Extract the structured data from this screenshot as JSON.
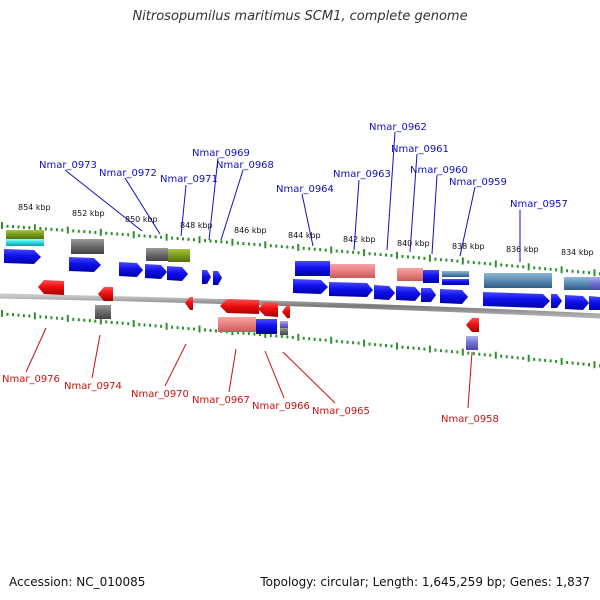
{
  "title": "Nitrosopumilus maritimus SCM1, complete genome",
  "footer": {
    "accession": "Accession: NC_010085",
    "summary": "Topology: circular; Length: 1,645,259 bp; Genes: 1,837"
  },
  "colors": {
    "backbone": "#8a8a8a",
    "tick": "#2f8f2f",
    "top_label": "#1010c0",
    "bottom_label": "#cc1010",
    "forward_cds": "#1a1aee",
    "reverse_cds": "#ee1a1a"
  },
  "scale_labels": [
    "854 kbp",
    "852 kbp",
    "850 kbp",
    "848 kbp",
    "846 kbp",
    "844 kbp",
    "842 kbp",
    "840 kbp",
    "838 kbp",
    "836 kbp",
    "834 kbp"
  ],
  "top_genes": [
    "Nmar_0962",
    "Nmar_0961",
    "Nmar_0969",
    "Nmar_0968",
    "Nmar_0973",
    "Nmar_0963",
    "Nmar_0960",
    "Nmar_0972",
    "Nmar_0971",
    "Nmar_0959",
    "Nmar_0964",
    "Nmar_0957"
  ],
  "bottom_genes": [
    "Nmar_0976",
    "Nmar_0974",
    "Nmar_0970",
    "Nmar_0967",
    "Nmar_0966",
    "Nmar_0965",
    "Nmar_0958"
  ]
}
